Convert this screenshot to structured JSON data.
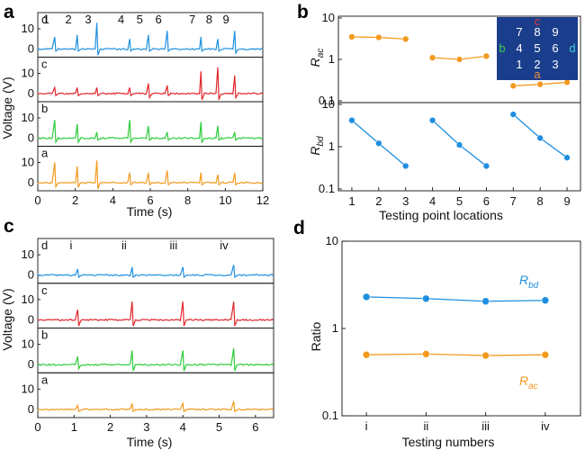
{
  "chart_data": [
    {
      "panel": "a",
      "type": "line",
      "xlabel": "Time (s)",
      "ylabel": "Voltage (V)",
      "xlim": [
        0,
        12
      ],
      "x_ticks": [
        "0",
        "2",
        "4",
        "6",
        "8",
        "10",
        "12"
      ],
      "y_ticks": [
        "0",
        "10"
      ],
      "ylim": [
        -4,
        18
      ],
      "colors": {
        "d": "#1f8fe0",
        "c": "#e0262b",
        "b": "#2ecc3c",
        "a": "#f39a1e"
      },
      "lanes": [
        {
          "name": "d",
          "peak_times": [
            0.9,
            2.1,
            3.15,
            4.9,
            5.9,
            6.9,
            8.7,
            9.6,
            10.5
          ],
          "peak_values": [
            6,
            7,
            13,
            5,
            7,
            9,
            6,
            5,
            9
          ],
          "dip_values": [
            -1,
            -1,
            -3,
            -1,
            -1,
            -1,
            -1,
            -1,
            -2
          ]
        },
        {
          "name": "c",
          "peak_times": [
            0.9,
            2.1,
            3.15,
            4.9,
            5.9,
            6.9,
            8.7,
            9.6,
            10.5
          ],
          "peak_values": [
            3,
            3,
            3,
            3,
            5,
            4,
            11,
            13,
            9
          ],
          "dip_values": [
            -1,
            -1,
            -1,
            -1,
            -2,
            -1,
            -3,
            -3,
            -2
          ]
        },
        {
          "name": "b",
          "peak_times": [
            0.9,
            2.1,
            3.15,
            4.9,
            5.9,
            6.9,
            8.7,
            9.6,
            10.5
          ],
          "peak_values": [
            9,
            7,
            3,
            9,
            6,
            3,
            8,
            6,
            3
          ],
          "dip_values": [
            -2,
            -2,
            -1,
            -2,
            -1,
            -1,
            -2,
            -1,
            -1
          ]
        },
        {
          "name": "a",
          "peak_times": [
            0.9,
            2.1,
            3.15,
            4.9,
            5.9,
            6.9,
            8.7,
            9.6,
            10.5
          ],
          "peak_values": [
            10,
            8,
            11,
            5,
            5,
            6,
            5,
            4,
            5
          ],
          "dip_values": [
            -2,
            -2,
            -3,
            -1,
            -1,
            -1,
            -1,
            -1,
            -1
          ]
        }
      ],
      "markers": [
        "1",
        "2",
        "3",
        "4",
        "5",
        "6",
        "7",
        "8",
        "9"
      ]
    },
    {
      "panel": "b",
      "type": "line",
      "xlabel": "Testing point locations",
      "x": [
        1,
        2,
        3,
        4,
        5,
        6,
        7,
        8,
        9
      ],
      "x_ticks": [
        "1",
        "2",
        "3",
        "4",
        "5",
        "6",
        "7",
        "8",
        "9"
      ],
      "subplots": [
        {
          "ylabel_main": "R",
          "ylabel_sub": "ac",
          "yscale": "log",
          "ylim": [
            0.1,
            10
          ],
          "y_ticks": [
            "0.1",
            "1",
            "10"
          ],
          "color": "#f39a1e",
          "groups": [
            [
              1,
              2,
              3
            ],
            [
              4,
              5,
              6
            ],
            [
              7,
              8,
              9
            ]
          ],
          "values": [
            3.5,
            3.4,
            3.1,
            1.1,
            1.0,
            1.2,
            0.23,
            0.25,
            0.28
          ]
        },
        {
          "ylabel_main": "R",
          "ylabel_sub": "bd",
          "yscale": "log",
          "ylim": [
            0.1,
            10
          ],
          "y_ticks": [
            "0.1",
            "1",
            "10"
          ],
          "color": "#1f8fe0",
          "groups": [
            [
              1,
              2,
              3
            ],
            [
              4,
              5,
              6
            ],
            [
              7,
              8,
              9
            ]
          ],
          "values": [
            4.2,
            1.2,
            0.35,
            4.2,
            1.1,
            0.35,
            5.8,
            1.6,
            0.55
          ]
        }
      ],
      "inset": {
        "grid": [
          [
            "7",
            "8",
            "9"
          ],
          [
            "4",
            "5",
            "6"
          ],
          [
            "1",
            "2",
            "3"
          ]
        ],
        "labels": {
          "top": "c",
          "bottom": "a",
          "left": "b",
          "right": "d"
        },
        "colors": {
          "background": "#1a3e8c",
          "text": "#ffffff",
          "top": "#e03a3a",
          "bottom": "#f08a3c",
          "left": "#3ccf4e",
          "right": "#3ecdd8"
        }
      }
    },
    {
      "panel": "c",
      "type": "line",
      "xlabel": "Time (s)",
      "ylabel": "Voltage (V)",
      "xlim": [
        0,
        6.5
      ],
      "x_ticks": [
        "0",
        "1",
        "2",
        "3",
        "4",
        "5",
        "6"
      ],
      "y_ticks": [
        "0",
        "10"
      ],
      "ylim": [
        -4,
        18
      ],
      "colors": {
        "d": "#1f8fe0",
        "c": "#e0262b",
        "b": "#2ecc3c",
        "a": "#f39a1e"
      },
      "lanes": [
        {
          "name": "d",
          "peak_times": [
            1.1,
            2.6,
            4.0,
            5.4
          ],
          "peak_values": [
            3,
            4,
            4,
            5
          ],
          "dip_values": [
            -1,
            -1,
            -1,
            -1
          ]
        },
        {
          "name": "c",
          "peak_times": [
            1.1,
            2.6,
            4.0,
            5.4
          ],
          "peak_values": [
            5,
            9,
            9,
            9
          ],
          "dip_values": [
            -3,
            -3,
            -3,
            -3
          ]
        },
        {
          "name": "b",
          "peak_times": [
            1.1,
            2.6,
            4.0,
            5.4
          ],
          "peak_values": [
            4,
            7,
            7,
            8
          ],
          "dip_values": [
            -2,
            -3,
            -3,
            -3
          ]
        },
        {
          "name": "a",
          "peak_times": [
            1.1,
            2.6,
            4.0,
            5.4
          ],
          "peak_values": [
            2,
            3,
            3,
            4
          ],
          "dip_values": [
            -1,
            -1,
            -1,
            -1
          ]
        }
      ],
      "markers": [
        "i",
        "ii",
        "iii",
        "iv"
      ]
    },
    {
      "panel": "d",
      "type": "line",
      "xlabel": "Testing numbers",
      "ylabel": "Ratio",
      "yscale": "log",
      "ylim": [
        0.1,
        10
      ],
      "y_ticks": [
        "0.1",
        "1",
        "10"
      ],
      "categories": [
        "i",
        "ii",
        "iii",
        "iv"
      ],
      "series": [
        {
          "name_main": "R",
          "name_sub": "bd",
          "color": "#1f8fe0",
          "values": [
            2.3,
            2.2,
            2.05,
            2.1
          ]
        },
        {
          "name_main": "R",
          "name_sub": "ac",
          "color": "#f39a1e",
          "values": [
            0.5,
            0.51,
            0.49,
            0.5
          ]
        }
      ]
    }
  ]
}
